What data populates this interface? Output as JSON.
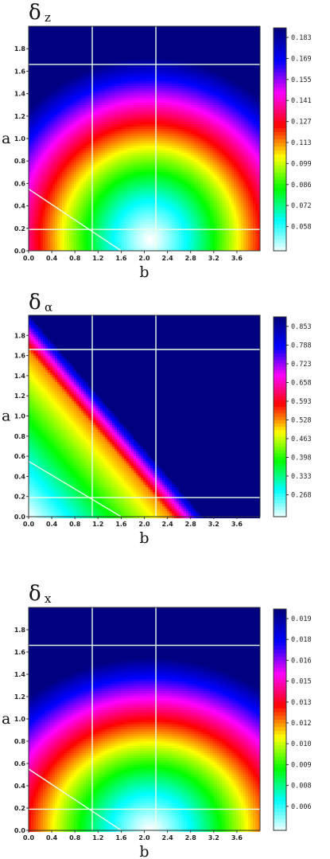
{
  "chart_data": [
    {
      "type": "heatmap",
      "title": "δ",
      "title_sub": "z",
      "xlabel": "b",
      "ylabel": "a",
      "xlim": [
        0.0,
        4.0
      ],
      "ylim": [
        0.0,
        2.0
      ],
      "x_ticks": [
        "0.0",
        "0.4",
        "0.8",
        "1.2",
        "1.6",
        "2.0",
        "2.4",
        "2.8",
        "3.2",
        "3.6"
      ],
      "y_ticks": [
        "0.0",
        "0.2",
        "0.4",
        "0.6",
        "0.8",
        "1.0",
        "1.2",
        "1.4",
        "1.6",
        "1.8"
      ],
      "colorbar_ticks": [
        "0.183",
        "0.169",
        "0.155",
        "0.141",
        "0.127",
        "0.113",
        "0.099",
        "0.086",
        "0.072",
        "0.058"
      ],
      "field": "ellipse",
      "center": [
        2.1,
        0.1
      ],
      "semi_axes": [
        3.0,
        1.62
      ],
      "reference_lines": {
        "vertical_b": [
          1.1,
          2.2
        ],
        "horizontal_a": [
          0.19,
          1.66
        ],
        "diagonal_b_intercept": 1.6,
        "diagonal_a_intercept": 0.55
      }
    },
    {
      "type": "heatmap",
      "title": "δ",
      "title_sub": "α",
      "xlabel": "b",
      "ylabel": "a",
      "xlim": [
        0.0,
        4.0
      ],
      "ylim": [
        0.0,
        2.0
      ],
      "x_ticks": [
        "0.0",
        "0.4",
        "0.8",
        "1.2",
        "1.6",
        "2.0",
        "2.4",
        "2.8",
        "3.2",
        "3.6"
      ],
      "y_ticks": [
        "0.0",
        "0.2",
        "0.4",
        "0.6",
        "0.8",
        "1.0",
        "1.2",
        "1.4",
        "1.6",
        "1.8"
      ],
      "colorbar_ticks": [
        "0.853",
        "0.788",
        "0.723",
        "0.658",
        "0.593",
        "0.528",
        "0.463",
        "0.398",
        "0.333",
        "0.268"
      ],
      "field": "band",
      "band_b_intercept": 3.0,
      "band_a_intercept": 2.0,
      "reference_lines": {
        "vertical_b": [
          1.1,
          2.2
        ],
        "horizontal_a": [
          0.19,
          1.66
        ],
        "diagonal_b_intercept": 1.6,
        "diagonal_a_intercept": 0.55
      }
    },
    {
      "type": "heatmap",
      "title": "δ",
      "title_sub": "x",
      "xlabel": "b",
      "ylabel": "a",
      "xlim": [
        0.0,
        4.0
      ],
      "ylim": [
        0.0,
        2.0
      ],
      "x_ticks": [
        "0.0",
        "0.4",
        "0.8",
        "1.2",
        "1.6",
        "2.0",
        "2.4",
        "2.8",
        "3.2",
        "3.6"
      ],
      "y_ticks": [
        "0.0",
        "0.2",
        "0.4",
        "0.6",
        "0.8",
        "1.0",
        "1.2",
        "1.4",
        "1.6",
        "1.8"
      ],
      "colorbar_ticks": [
        "0.019",
        "0.018",
        "0.016",
        "0.015",
        "0.013",
        "0.012",
        "0.010",
        "0.009",
        "0.008",
        "0.006"
      ],
      "field": "ellipse",
      "center": [
        2.1,
        0.0
      ],
      "semi_axes": [
        3.3,
        1.55
      ],
      "reference_lines": {
        "vertical_b": [
          1.1,
          2.2
        ],
        "horizontal_a": [
          0.19,
          1.66
        ],
        "diagonal_b_intercept": 1.6,
        "diagonal_a_intercept": 0.55
      }
    }
  ],
  "colors": {
    "background_max": "#0a1450",
    "reference_line": "#e8ffe8",
    "colormap_low_to_high": [
      "#ffffff",
      "#00ffff",
      "#00ff00",
      "#ffff00",
      "#ff0000",
      "#ff00ff",
      "#0000ff",
      "#000080"
    ]
  }
}
